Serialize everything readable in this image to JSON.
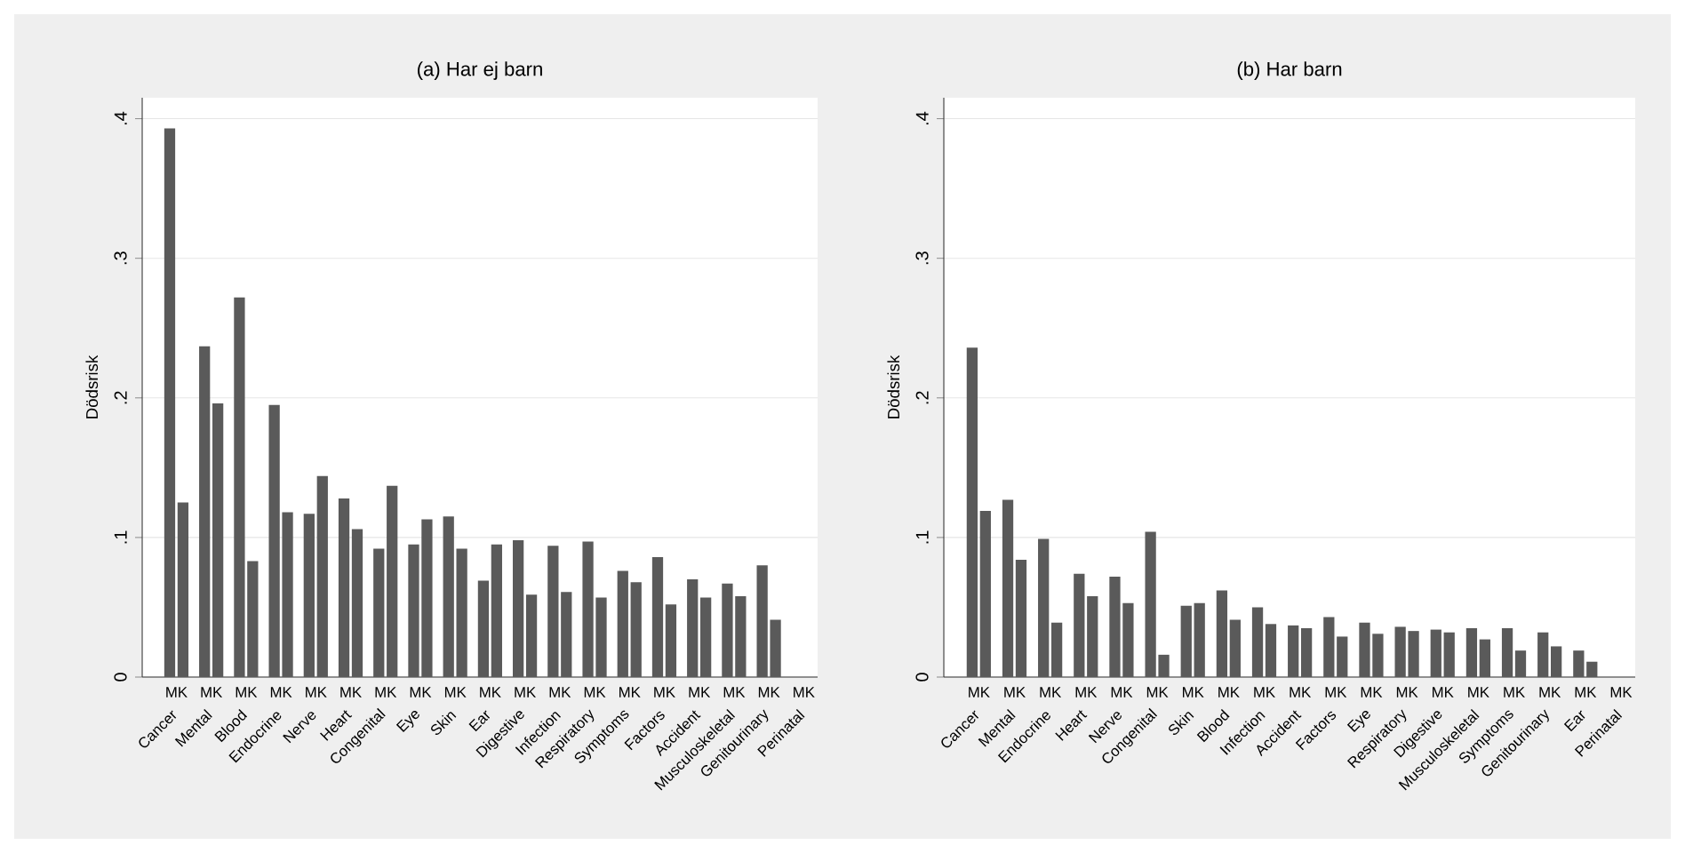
{
  "chart_data": [
    {
      "type": "bar",
      "title": "(a) Har ej barn",
      "ylabel": "Dödsrisk",
      "categories": [
        "Cancer",
        "Mental",
        "Blood",
        "Endocrine",
        "Nerve",
        "Heart",
        "Congenital",
        "Eye",
        "Skin",
        "Ear",
        "Digestive",
        "Infection",
        "Respiratory",
        "Symptoms",
        "Factors",
        "Accident",
        "Musculoskeletal",
        "Genitourinary",
        "Perinatal"
      ],
      "series": [
        {
          "color": "#5a5a5a",
          "values": [
            0.393,
            0.237,
            0.272,
            0.195,
            0.117,
            0.128,
            0.092,
            0.095,
            0.115,
            0.069,
            0.098,
            0.094,
            0.097,
            0.076,
            0.086,
            0.07,
            0.067,
            0.08,
            null
          ]
        },
        {
          "color": "#5a5a5a",
          "values": [
            0.125,
            0.196,
            0.083,
            0.118,
            0.144,
            0.106,
            0.137,
            0.113,
            0.092,
            0.095,
            0.059,
            0.061,
            0.057,
            0.068,
            0.052,
            0.057,
            0.058,
            0.041,
            null
          ]
        }
      ],
      "ylim": [
        0,
        0.415
      ],
      "yticks": [
        0,
        {
          "value": 0.1,
          "label": ".1"
        },
        {
          "value": 0.2,
          "label": ".2"
        },
        {
          "value": 0.3,
          "label": ".3"
        },
        {
          "value": 0.4,
          "label": ".4"
        }
      ],
      "grid": "y",
      "annotations": [
        "MK",
        "MK",
        "MK",
        "MK",
        "MK",
        "MK",
        "MK",
        "MK",
        "MK",
        "MK",
        "MK",
        "MK",
        "MK",
        "MK",
        "MK",
        "MK",
        "MK",
        "MK",
        "MK"
      ]
    },
    {
      "type": "bar",
      "title": "(b) Har barn",
      "ylabel": "Dödsrisk",
      "categories": [
        "Cancer",
        "Mental",
        "Endocrine",
        "Heart",
        "Nerve",
        "Congenital",
        "Skin",
        "Blood",
        "Infection",
        "Accident",
        "Factors",
        "Eye",
        "Respiratory",
        "Digestive",
        "Musculoskeletal",
        "Symptoms",
        "Genitourinary",
        "Ear",
        "Perinatal"
      ],
      "series": [
        {
          "color": "#5a5a5a",
          "values": [
            0.236,
            0.127,
            0.099,
            0.074,
            0.072,
            0.104,
            0.051,
            0.062,
            0.05,
            0.037,
            0.043,
            0.039,
            0.036,
            0.034,
            0.035,
            0.035,
            0.032,
            0.019,
            null
          ]
        },
        {
          "color": "#5a5a5a",
          "values": [
            0.119,
            0.084,
            0.039,
            0.058,
            0.053,
            0.016,
            0.053,
            0.041,
            0.038,
            0.035,
            0.029,
            0.031,
            0.033,
            0.032,
            0.027,
            0.019,
            0.022,
            0.011,
            null
          ]
        }
      ],
      "ylim": [
        0,
        0.415
      ],
      "yticks": [
        0,
        {
          "value": 0.1,
          "label": ".1"
        },
        {
          "value": 0.2,
          "label": ".2"
        },
        {
          "value": 0.3,
          "label": ".3"
        },
        {
          "value": 0.4,
          "label": ".4"
        }
      ],
      "grid": "y",
      "annotations": [
        "MK",
        "MK",
        "MK",
        "MK",
        "MK",
        "MK",
        "MK",
        "MK",
        "MK",
        "MK",
        "MK",
        "MK",
        "MK",
        "MK",
        "MK",
        "MK",
        "MK",
        "MK",
        "MK"
      ]
    }
  ]
}
